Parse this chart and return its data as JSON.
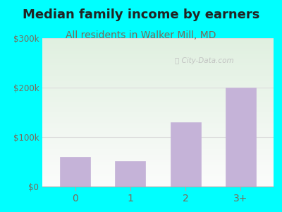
{
  "title": "Median family income by earners",
  "subtitle": "All residents in Walker Mill, MD",
  "categories": [
    "0",
    "1",
    "2",
    "3+"
  ],
  "values": [
    60000,
    52000,
    130000,
    200000
  ],
  "bar_color": "#c5b3d8",
  "bar_edge_color": "#c5b3d8",
  "ylim": [
    0,
    300000
  ],
  "yticks": [
    0,
    100000,
    200000,
    300000
  ],
  "ytick_labels": [
    "$0",
    "$100k",
    "$200k",
    "$300k"
  ],
  "title_fontsize": 13,
  "subtitle_fontsize": 10,
  "title_color": "#222222",
  "subtitle_color": "#7a6a5a",
  "background_outer": "#00ffff",
  "watermark": "City-Data.com",
  "tick_color": "#7a6a5a",
  "axis_color": "#aaaaaa",
  "grid_color": "#dddddd"
}
